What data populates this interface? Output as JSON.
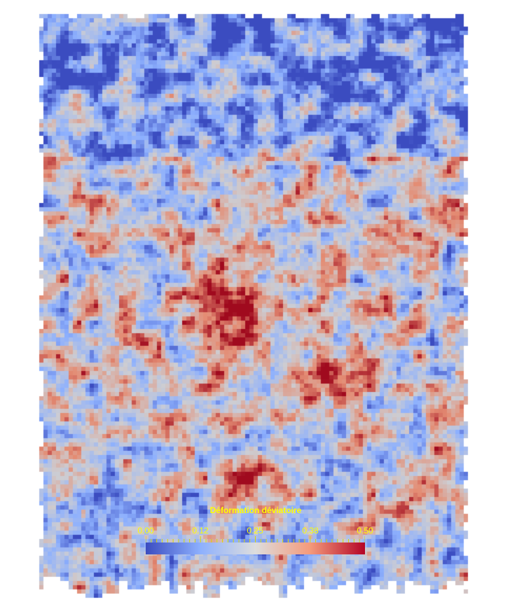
{
  "legend": {
    "title": "Déformation déviatoire",
    "ticks": [
      "0.00",
      "0.12",
      "0.25",
      "0.38",
      "0.50"
    ],
    "range": [
      0.0,
      0.5
    ],
    "colormap": [
      "#3b4cc0",
      "#dddddd",
      "#b40426"
    ],
    "label_color": "#ffff00"
  }
}
